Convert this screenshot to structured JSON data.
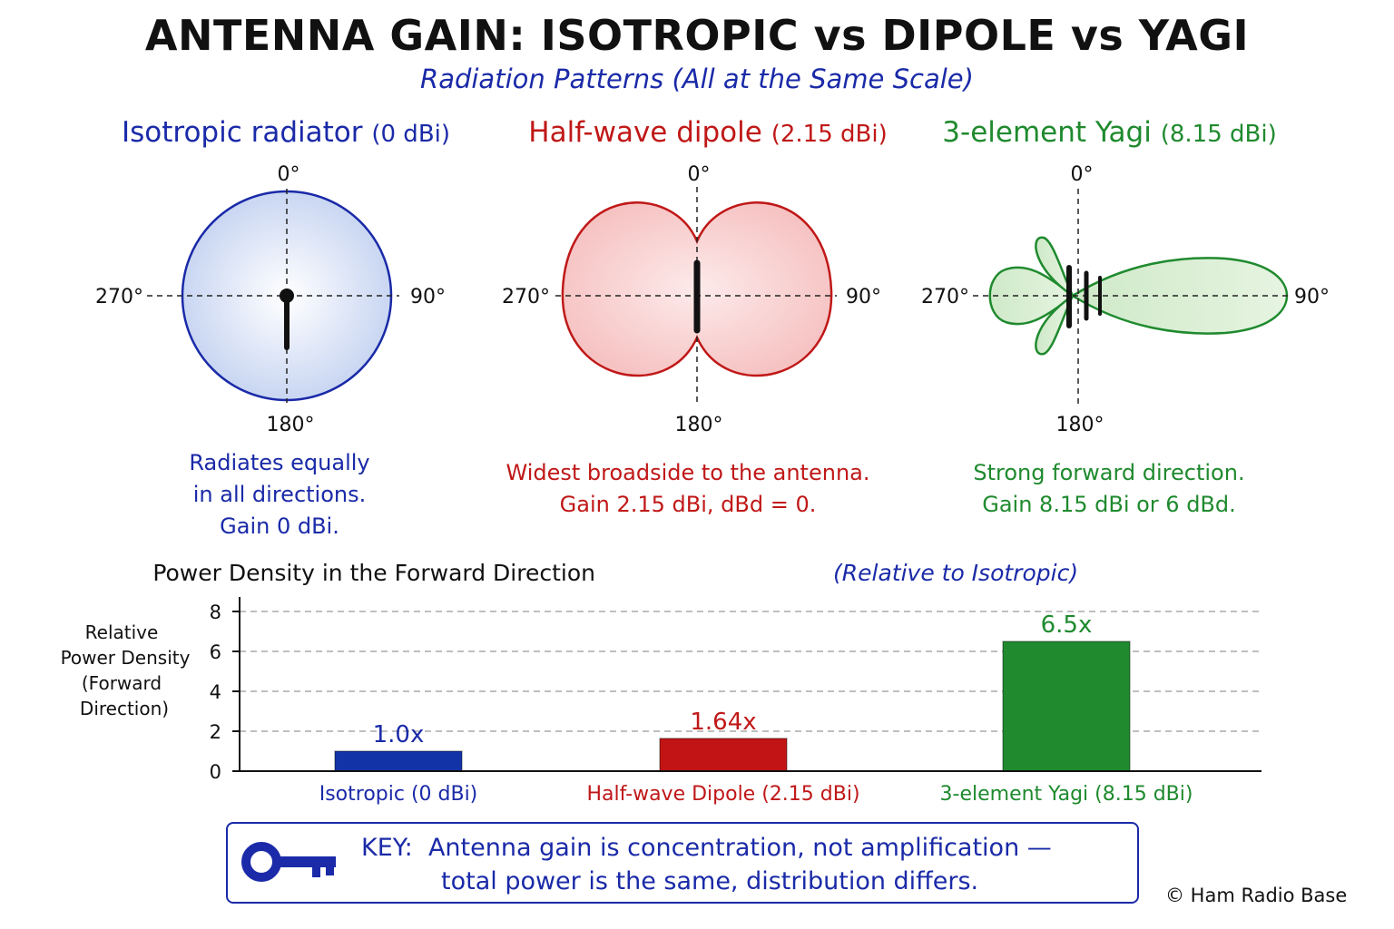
{
  "title": "ANTENNA GAIN: ISOTROPIC vs DIPOLE vs YAGI",
  "subtitle": "Radiation Patterns (All at the Same Scale)",
  "colors": {
    "isotropic": "#1a2aa8",
    "dipole": "#c01818",
    "yagi": "#1f8a2e"
  },
  "angle_labels": {
    "top": "0°",
    "right": "90°",
    "bottom": "180°",
    "left": "270°"
  },
  "panels": [
    {
      "name": "Isotropic radiator",
      "gain": "(0 dBi)",
      "desc": [
        "Radiates equally",
        "in all directions.",
        "Gain 0 dBi."
      ]
    },
    {
      "name": "Half-wave dipole",
      "gain": "(2.15 dBi)",
      "desc": [
        "Widest broadside to the antenna.",
        "Gain 2.15 dBi, dBd = 0."
      ]
    },
    {
      "name": "3-element Yagi",
      "gain": "(8.15 dBi)",
      "desc": [
        "Strong forward direction.",
        "Gain 8.15 dBi or 6 dBd."
      ]
    }
  ],
  "chart_data": {
    "type": "bar",
    "title": "Power Density in the Forward Direction",
    "title_suffix": "(Relative to Isotropic)",
    "ylabel_lines": [
      "Relative",
      "Power Density",
      "(Forward",
      "Direction)"
    ],
    "categories": [
      "Isotropic (0 dBi)",
      "Half-wave Dipole (2.15 dBi)",
      "3-element Yagi (8.15 dBi)"
    ],
    "values": [
      1.0,
      1.64,
      6.5
    ],
    "value_labels": [
      "1.0x",
      "1.64x",
      "6.5x"
    ],
    "yticks": [
      0,
      2,
      4,
      6,
      8
    ],
    "ylim": [
      0,
      8
    ],
    "grid": true
  },
  "key": {
    "label": "KEY:",
    "line1": "Antenna gain is concentration, not amplification —",
    "line2": "total power is the same, distribution differs."
  },
  "copyright": "© Ham Radio Base"
}
